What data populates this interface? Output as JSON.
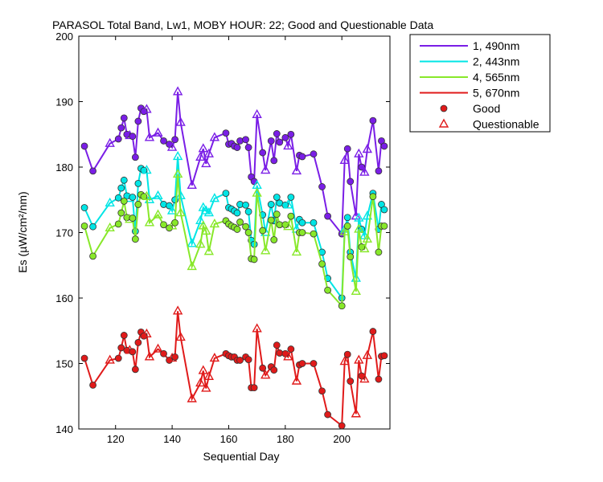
{
  "chart_data": {
    "type": "line",
    "title": "PARASOL Total Band,  Lw1, MOBY HOUR: 22;  Good and Questionable Data",
    "xlabel": "Sequential Day",
    "ylabel": "Es (µW/cm²/nm)",
    "xlim": [
      107,
      217
    ],
    "ylim": [
      140,
      200
    ],
    "x_ticks": [
      120,
      140,
      160,
      180,
      200
    ],
    "y_ticks": [
      140,
      150,
      160,
      170,
      180,
      190,
      200
    ],
    "grid": false,
    "legend_position": "outside-top-right",
    "legend": {
      "good_label": "Good",
      "questionable_label": "Questionable"
    },
    "x": [
      109,
      112,
      118,
      121,
      122,
      123,
      124,
      125,
      126,
      127,
      128,
      129,
      130,
      131,
      132,
      135,
      137,
      139,
      140,
      141,
      142,
      143,
      147,
      150,
      151,
      152,
      153,
      155,
      159,
      160,
      161,
      162,
      163,
      164,
      166,
      167,
      168,
      169,
      170,
      172,
      173,
      175,
      176,
      177,
      178,
      180,
      181,
      182,
      184,
      185,
      186,
      190,
      193,
      195,
      200,
      201,
      202,
      203,
      205,
      206,
      207,
      208,
      209,
      211,
      213,
      214,
      215
    ],
    "quality": [
      "g",
      "g",
      "q",
      "g",
      "g",
      "g",
      "g",
      "q",
      "g",
      "g",
      "g",
      "g",
      "g",
      "q",
      "q",
      "q",
      "g",
      "g",
      "q",
      "g",
      "q",
      "q",
      "q",
      "q",
      "q",
      "q",
      "q",
      "q",
      "g",
      "g",
      "g",
      "g",
      "g",
      "g",
      "g",
      "g",
      "g",
      "g",
      "q",
      "g",
      "q",
      "g",
      "g",
      "g",
      "g",
      "g",
      "q",
      "g",
      "q",
      "g",
      "g",
      "g",
      "g",
      "g",
      "g",
      "q",
      "g",
      "g",
      "q",
      "q",
      "g",
      "q",
      "q",
      "g",
      "g",
      "g",
      "g"
    ],
    "series": [
      {
        "name": "1, 490nm",
        "color": "#7a1ee6",
        "values": [
          183.2,
          179.4,
          183.6,
          184.3,
          186.0,
          187.5,
          185.0,
          184.8,
          184.7,
          181.5,
          187.0,
          189.0,
          188.5,
          188.8,
          184.5,
          185.2,
          184.0,
          183.5,
          183.0,
          184.2,
          191.5,
          186.8,
          177.2,
          181.5,
          182.8,
          180.5,
          182.0,
          184.5,
          185.2,
          183.5,
          183.6,
          183.2,
          183.0,
          184.0,
          184.2,
          183.0,
          178.5,
          177.8,
          188.0,
          182.2,
          179.5,
          184.0,
          181.0,
          185.1,
          183.8,
          184.5,
          183.2,
          185.0,
          179.4,
          181.8,
          181.6,
          182.0,
          177.0,
          172.5,
          169.8,
          181.0,
          182.8,
          177.8,
          172.5,
          182.0,
          180.0,
          179.2,
          182.7,
          187.1,
          179.4,
          184.0,
          183.2
        ]
      },
      {
        "name": "2, 443nm",
        "color": "#00e5e5",
        "values": [
          173.8,
          170.9,
          174.5,
          175.3,
          176.8,
          178.0,
          175.6,
          175.2,
          175.4,
          170.2,
          177.5,
          179.8,
          179.5,
          179.5,
          175.0,
          175.6,
          174.3,
          174.1,
          173.3,
          175.0,
          181.6,
          175.6,
          168.3,
          171.8,
          173.8,
          173.3,
          173.0,
          175.2,
          176.0,
          173.8,
          173.6,
          173.3,
          173.0,
          174.3,
          174.2,
          173.2,
          168.8,
          168.2,
          177.2,
          172.7,
          170.0,
          174.3,
          171.8,
          175.4,
          174.5,
          174.2,
          174.2,
          175.4,
          170.5,
          172.0,
          171.5,
          171.5,
          167.0,
          163.0,
          160.0,
          170.5,
          172.3,
          167.0,
          163.0,
          172.2,
          170.5,
          169.5,
          172.5,
          176.0,
          170.5,
          174.3,
          173.5
        ]
      },
      {
        "name": "4, 565nm",
        "color": "#88e82a",
        "values": [
          171.0,
          166.4,
          170.7,
          171.3,
          173.0,
          174.8,
          172.3,
          172.0,
          172.2,
          169.0,
          174.3,
          175.8,
          175.5,
          175.5,
          171.5,
          172.7,
          171.2,
          170.7,
          171.0,
          171.5,
          178.9,
          173.0,
          164.8,
          168.2,
          171.0,
          170.2,
          167.1,
          171.3,
          171.8,
          171.3,
          171.0,
          170.8,
          170.5,
          171.6,
          170.9,
          170.0,
          166.0,
          165.9,
          176.0,
          170.3,
          167.2,
          171.9,
          168.9,
          172.8,
          171.2,
          171.2,
          170.9,
          172.5,
          167.0,
          170.0,
          170.0,
          169.8,
          165.2,
          161.2,
          158.8,
          170.1,
          171.0,
          166.3,
          161.0,
          170.5,
          167.8,
          167.5,
          169.0,
          175.5,
          167.0,
          171.0,
          171.0
        ]
      },
      {
        "name": "5, 670nm",
        "color": "#e01a1a",
        "values": [
          150.8,
          146.7,
          150.5,
          150.8,
          152.4,
          154.3,
          152.0,
          152.0,
          151.8,
          149.1,
          153.2,
          154.8,
          154.2,
          154.5,
          151.0,
          152.2,
          151.5,
          150.5,
          150.8,
          151.0,
          158.0,
          154.0,
          144.6,
          147.0,
          148.9,
          146.2,
          148.0,
          150.8,
          151.5,
          151.2,
          151.0,
          151.0,
          150.5,
          150.5,
          151.0,
          150.6,
          146.3,
          146.3,
          155.3,
          149.3,
          148.2,
          149.5,
          149.0,
          152.8,
          151.6,
          151.5,
          151.0,
          152.2,
          147.3,
          149.8,
          150.0,
          150.0,
          145.8,
          142.2,
          140.5,
          150.3,
          151.4,
          147.3,
          142.3,
          150.5,
          148.1,
          147.6,
          151.2,
          154.9,
          147.6,
          151.1,
          151.2
        ]
      }
    ]
  }
}
